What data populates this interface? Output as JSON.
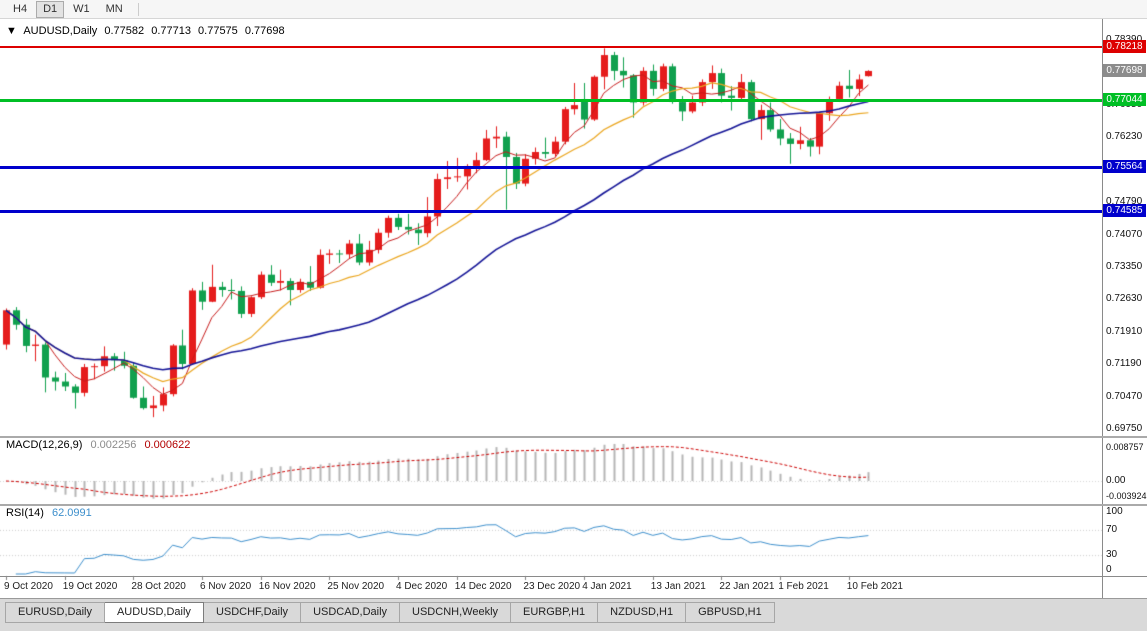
{
  "toolbar": {
    "timeframes": [
      {
        "label": "H4",
        "active": false
      },
      {
        "label": "D1",
        "active": true
      },
      {
        "label": "W1",
        "active": false
      },
      {
        "label": "MN",
        "active": false
      }
    ]
  },
  "quote": {
    "collapse_arrow": "▼",
    "symbol": "AUDUSD,Daily",
    "open": "0.77582",
    "high": "0.77713",
    "low": "0.77575",
    "close": "0.77698"
  },
  "indicators": {
    "macd": {
      "label": "MACD(12,26,9)",
      "main_value": "0.002256",
      "signal_value": "0.000622",
      "params": {
        "fast": 12,
        "slow": 26,
        "signal": 9
      },
      "histogram_color": "#b6b6b6",
      "signal_color": "#cc0000",
      "axis": [
        {
          "v": 0.008757,
          "label": "0.008757"
        },
        {
          "v": 0,
          "label": "0.00"
        },
        {
          "v": -0.003924,
          "label": "-0.003924"
        }
      ]
    },
    "rsi": {
      "label": "RSI(14)",
      "value": "62.0991",
      "period": 14,
      "line_color": "#3d8fcc",
      "levels": [
        70,
        30
      ],
      "axis": [
        {
          "v": 100,
          "label": "100"
        },
        {
          "v": 70,
          "label": "70"
        },
        {
          "v": 30,
          "label": "30"
        },
        {
          "v": 0,
          "label": "0"
        }
      ]
    }
  },
  "time_axis": {
    "labels": [
      {
        "text": "9 Oct 2020",
        "bar": 0
      },
      {
        "text": "19 Oct 2020",
        "bar": 6
      },
      {
        "text": "28 Oct 2020",
        "bar": 13
      },
      {
        "text": "6 Nov 2020",
        "bar": 20
      },
      {
        "text": "16 Nov 2020",
        "bar": 26
      },
      {
        "text": "25 Nov 2020",
        "bar": 33
      },
      {
        "text": "4 Dec 2020",
        "bar": 40
      },
      {
        "text": "14 Dec 2020",
        "bar": 46
      },
      {
        "text": "23 Dec 2020",
        "bar": 53
      },
      {
        "text": "4 Jan 2021",
        "bar": 59
      },
      {
        "text": "13 Jan 2021",
        "bar": 66
      },
      {
        "text": "22 Jan 2021",
        "bar": 73
      },
      {
        "text": "1 Feb 2021",
        "bar": 79
      },
      {
        "text": "10 Feb 2021",
        "bar": 86
      }
    ]
  },
  "tabs": {
    "items": [
      "EURUSD,Daily",
      "AUDUSD,Daily",
      "USDCHF,Daily",
      "USDCAD,Daily",
      "USDCNH,Weekly",
      "EURGBP,H1",
      "NZDUSD,H1",
      "GBPUSD,H1"
    ],
    "active_index": 1
  },
  "chart_data": {
    "type": "candlestick",
    "symbol": "AUDUSD",
    "timeframe": "Daily",
    "y_range": [
      0.6958,
      0.7885
    ],
    "y_ticks": [
      0.7839,
      0.7767,
      0.7695,
      0.7623,
      0.7551,
      0.7479,
      0.7407,
      0.7335,
      0.7263,
      0.7191,
      0.7119,
      0.7047,
      0.6975
    ],
    "bull_color": "#e51c1c",
    "bear_color": "#10a04e",
    "current_price": {
      "value": 0.77698,
      "badge_color": "#8c8c8c"
    },
    "hlines": [
      {
        "price": 0.78218,
        "color": "#dd0000",
        "width": 2
      },
      {
        "price": 0.77044,
        "color": "#00bf25",
        "width": 3
      },
      {
        "price": 0.75564,
        "color": "#0000cc",
        "width": 3
      },
      {
        "price": 0.74585,
        "color": "#0000cc",
        "width": 3
      }
    ],
    "moving_averages": [
      {
        "period": 5,
        "color": "#c61a1a",
        "width": 1
      },
      {
        "period": 13,
        "color": "#eaa51e",
        "width": 1.2
      },
      {
        "period": 34,
        "color": "#141496",
        "width": 1.6
      }
    ],
    "bars": [
      [
        "2020.10.09",
        0.7163,
        0.7243,
        0.7152,
        0.7239
      ],
      [
        "2020.10.12",
        0.7239,
        0.7246,
        0.7196,
        0.7207
      ],
      [
        "2020.10.13",
        0.7207,
        0.722,
        0.7146,
        0.716
      ],
      [
        "2020.10.14",
        0.716,
        0.7185,
        0.7126,
        0.7163
      ],
      [
        "2020.10.15",
        0.7163,
        0.7168,
        0.7057,
        0.709
      ],
      [
        "2020.10.16",
        0.709,
        0.7103,
        0.7061,
        0.7081
      ],
      [
        "2020.10.19",
        0.7081,
        0.71,
        0.706,
        0.707
      ],
      [
        "2020.10.20",
        0.707,
        0.7075,
        0.7021,
        0.7056
      ],
      [
        "2020.10.21",
        0.7056,
        0.712,
        0.7048,
        0.7113
      ],
      [
        "2020.10.22",
        0.7113,
        0.7121,
        0.7086,
        0.7115
      ],
      [
        "2020.10.23",
        0.7115,
        0.7159,
        0.7103,
        0.7137
      ],
      [
        "2020.10.26",
        0.7137,
        0.7144,
        0.7105,
        0.7128
      ],
      [
        "2020.10.27",
        0.7128,
        0.7147,
        0.711,
        0.7116
      ],
      [
        "2020.10.28",
        0.7116,
        0.7122,
        0.7043,
        0.7045
      ],
      [
        "2020.10.29",
        0.7045,
        0.707,
        0.7019,
        0.7022
      ],
      [
        "2020.10.30",
        0.7022,
        0.7049,
        0.7002,
        0.7028
      ],
      [
        "2020.11.02",
        0.7028,
        0.7068,
        0.7015,
        0.7053
      ],
      [
        "2020.11.03",
        0.7053,
        0.7164,
        0.7048,
        0.7161
      ],
      [
        "2020.11.04",
        0.7161,
        0.7196,
        0.7108,
        0.712
      ],
      [
        "2020.11.05",
        0.712,
        0.7288,
        0.7118,
        0.7283
      ],
      [
        "2020.11.06",
        0.7283,
        0.7302,
        0.724,
        0.7258
      ],
      [
        "2020.11.09",
        0.7258,
        0.734,
        0.7257,
        0.7291
      ],
      [
        "2020.11.10",
        0.7291,
        0.7302,
        0.7269,
        0.7284
      ],
      [
        "2020.11.11",
        0.7284,
        0.7308,
        0.7263,
        0.7282
      ],
      [
        "2020.11.12",
        0.7282,
        0.7292,
        0.7222,
        0.7231
      ],
      [
        "2020.11.13",
        0.7231,
        0.727,
        0.7224,
        0.7268
      ],
      [
        "2020.11.16",
        0.7268,
        0.7325,
        0.7264,
        0.7318
      ],
      [
        "2020.11.17",
        0.7318,
        0.7339,
        0.7293,
        0.73
      ],
      [
        "2020.11.18",
        0.73,
        0.7329,
        0.7283,
        0.7304
      ],
      [
        "2020.11.19",
        0.7304,
        0.731,
        0.725,
        0.7284
      ],
      [
        "2020.11.20",
        0.7284,
        0.7309,
        0.7278,
        0.7302
      ],
      [
        "2020.11.23",
        0.7302,
        0.7337,
        0.7282,
        0.7289
      ],
      [
        "2020.11.24",
        0.7289,
        0.7374,
        0.7287,
        0.7362
      ],
      [
        "2020.11.25",
        0.7362,
        0.7374,
        0.7342,
        0.7365
      ],
      [
        "2020.11.26",
        0.7365,
        0.7373,
        0.7344,
        0.7363
      ],
      [
        "2020.11.27",
        0.7363,
        0.7395,
        0.7355,
        0.7387
      ],
      [
        "2020.11.30",
        0.7387,
        0.7408,
        0.7339,
        0.7345
      ],
      [
        "2020.12.01",
        0.7345,
        0.7393,
        0.7338,
        0.7373
      ],
      [
        "2020.12.02",
        0.7373,
        0.742,
        0.7365,
        0.7411
      ],
      [
        "2020.12.03",
        0.7411,
        0.7449,
        0.74,
        0.7444
      ],
      [
        "2020.12.04",
        0.7444,
        0.7453,
        0.7417,
        0.7424
      ],
      [
        "2020.12.07",
        0.7424,
        0.7453,
        0.7407,
        0.7418
      ],
      [
        "2020.12.08",
        0.7418,
        0.7432,
        0.7384,
        0.741
      ],
      [
        "2020.12.09",
        0.741,
        0.749,
        0.7401,
        0.7447
      ],
      [
        "2020.12.10",
        0.7447,
        0.7542,
        0.7426,
        0.753
      ],
      [
        "2020.12.11",
        0.753,
        0.757,
        0.7508,
        0.7534
      ],
      [
        "2020.12.14",
        0.7534,
        0.7577,
        0.7524,
        0.7536
      ],
      [
        "2020.12.15",
        0.7536,
        0.7563,
        0.7507,
        0.7558
      ],
      [
        "2020.12.16",
        0.7558,
        0.7589,
        0.7543,
        0.7572
      ],
      [
        "2020.12.17",
        0.7572,
        0.7639,
        0.757,
        0.762
      ],
      [
        "2020.12.18",
        0.762,
        0.7647,
        0.7599,
        0.7624
      ],
      [
        "2020.12.21",
        0.7624,
        0.7635,
        0.7462,
        0.7579
      ],
      [
        "2020.12.22",
        0.7579,
        0.7588,
        0.7508,
        0.752
      ],
      [
        "2020.12.23",
        0.752,
        0.7585,
        0.7514,
        0.7575
      ],
      [
        "2020.12.24",
        0.7575,
        0.76,
        0.7562,
        0.759
      ],
      [
        "2020.12.28",
        0.759,
        0.7622,
        0.7576,
        0.7586
      ],
      [
        "2020.12.29",
        0.7586,
        0.7624,
        0.758,
        0.7613
      ],
      [
        "2020.12.30",
        0.7613,
        0.769,
        0.7607,
        0.7685
      ],
      [
        "2020.12.31",
        0.7685,
        0.7743,
        0.7673,
        0.7694
      ],
      [
        "2021.01.04",
        0.7706,
        0.7743,
        0.7642,
        0.7662
      ],
      [
        "2021.01.05",
        0.7662,
        0.776,
        0.7659,
        0.7757
      ],
      [
        "2021.01.06",
        0.7757,
        0.782,
        0.7729,
        0.7805
      ],
      [
        "2021.01.07",
        0.7805,
        0.7812,
        0.7749,
        0.777
      ],
      [
        "2021.01.08",
        0.777,
        0.78,
        0.7733,
        0.776
      ],
      [
        "2021.01.11",
        0.776,
        0.7763,
        0.7666,
        0.77
      ],
      [
        "2021.01.12",
        0.77,
        0.7778,
        0.7693,
        0.777
      ],
      [
        "2021.01.13",
        0.777,
        0.7784,
        0.7715,
        0.773
      ],
      [
        "2021.01.14",
        0.773,
        0.7786,
        0.7725,
        0.778
      ],
      [
        "2021.01.15",
        0.778,
        0.7786,
        0.7697,
        0.7702
      ],
      [
        "2021.01.18",
        0.7702,
        0.7714,
        0.7659,
        0.768
      ],
      [
        "2021.01.19",
        0.768,
        0.7715,
        0.7676,
        0.77
      ],
      [
        "2021.01.20",
        0.77,
        0.7751,
        0.7692,
        0.7745
      ],
      [
        "2021.01.21",
        0.7745,
        0.7782,
        0.773,
        0.7765
      ],
      [
        "2021.01.22",
        0.7765,
        0.7775,
        0.77,
        0.7715
      ],
      [
        "2021.01.25",
        0.7715,
        0.7736,
        0.7682,
        0.771
      ],
      [
        "2021.01.26",
        0.771,
        0.7763,
        0.7705,
        0.7745
      ],
      [
        "2021.01.27",
        0.7745,
        0.775,
        0.7658,
        0.7663
      ],
      [
        "2021.01.28",
        0.7663,
        0.7695,
        0.7617,
        0.7683
      ],
      [
        "2021.01.29",
        0.7683,
        0.77,
        0.7635,
        0.764
      ],
      [
        "2021.02.01",
        0.764,
        0.7663,
        0.7605,
        0.762
      ],
      [
        "2021.02.02",
        0.762,
        0.7632,
        0.7564,
        0.7608
      ],
      [
        "2021.02.03",
        0.7608,
        0.7646,
        0.7596,
        0.7616
      ],
      [
        "2021.02.04",
        0.7616,
        0.7621,
        0.758,
        0.7602
      ],
      [
        "2021.02.05",
        0.7602,
        0.7679,
        0.7585,
        0.7676
      ],
      [
        "2021.02.08",
        0.7676,
        0.7713,
        0.7659,
        0.7706
      ],
      [
        "2021.02.09",
        0.7706,
        0.7746,
        0.7702,
        0.7737
      ],
      [
        "2021.02.10",
        0.7737,
        0.7772,
        0.7711,
        0.773
      ],
      [
        "2021.02.11",
        0.773,
        0.7762,
        0.7714,
        0.7751
      ],
      [
        "2021.02.12",
        0.77582,
        0.77713,
        0.77575,
        0.77698
      ]
    ]
  }
}
